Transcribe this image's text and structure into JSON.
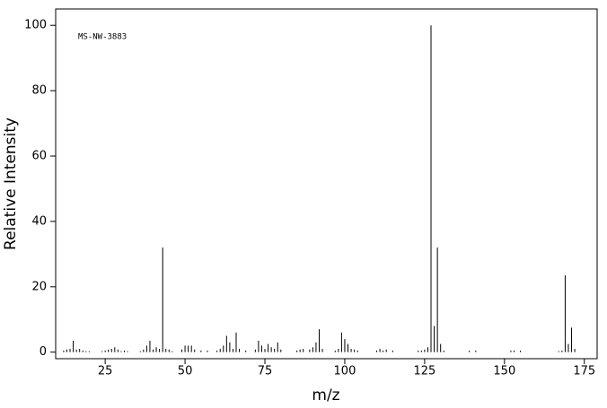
{
  "chart_data": {
    "type": "stem",
    "annotation": "MS-NW-3883",
    "x_label": "m/z",
    "y_label": "Relative Intensity",
    "color": "#000000",
    "xlim": [
      9.5,
      179
    ],
    "ylim": [
      -2,
      105
    ],
    "xticks": [
      25,
      50,
      75,
      100,
      125,
      150,
      175
    ],
    "yticks": [
      0,
      20,
      40,
      60,
      80,
      100
    ],
    "x": [
      12,
      13,
      14,
      15,
      16,
      17,
      18,
      19,
      20,
      24,
      25,
      26,
      27,
      28,
      29,
      30,
      31,
      32,
      36,
      37,
      38,
      39,
      40,
      41,
      42,
      43,
      44,
      45,
      46,
      49,
      50,
      51,
      52,
      53,
      55,
      57,
      60,
      61,
      62,
      63,
      64,
      65,
      66,
      67,
      69,
      72,
      73,
      74,
      75,
      76,
      77,
      78,
      79,
      80,
      85,
      86,
      87,
      89,
      90,
      91,
      92,
      93,
      97,
      98,
      99,
      100,
      101,
      102,
      103,
      104,
      110,
      111,
      112,
      113,
      115,
      123,
      124,
      125,
      126,
      127,
      128,
      129,
      130,
      131,
      139,
      141,
      152,
      153,
      155,
      167,
      168,
      169,
      170,
      171,
      172
    ],
    "values": [
      0.5,
      0.8,
      1,
      3.5,
      0.8,
      1,
      0.5,
      0.3,
      0.3,
      0.3,
      0.5,
      0.8,
      1,
      1.5,
      0.8,
      0.3,
      0.5,
      0.3,
      0.3,
      0.8,
      2,
      3.5,
      0.8,
      1.5,
      1,
      32,
      1,
      0.8,
      0.3,
      0.8,
      2,
      2,
      2,
      0.8,
      0.5,
      0.5,
      0.5,
      1,
      2,
      5,
      3,
      1,
      6,
      1,
      0.5,
      0.8,
      3.5,
      2,
      1,
      2.5,
      1.5,
      1,
      3,
      0.8,
      0.5,
      0.8,
      1,
      0.8,
      1.5,
      3,
      7,
      1,
      0.5,
      1,
      6,
      4,
      2.5,
      1,
      0.8,
      0.5,
      0.5,
      1,
      0.5,
      0.8,
      0.5,
      0.5,
      0.5,
      0.8,
      1.5,
      100,
      8,
      32,
      2.5,
      0.5,
      0.5,
      0.5,
      0.5,
      0.5,
      0.5,
      0.3,
      0.5,
      23.5,
      2.5,
      7.5,
      1
    ]
  }
}
